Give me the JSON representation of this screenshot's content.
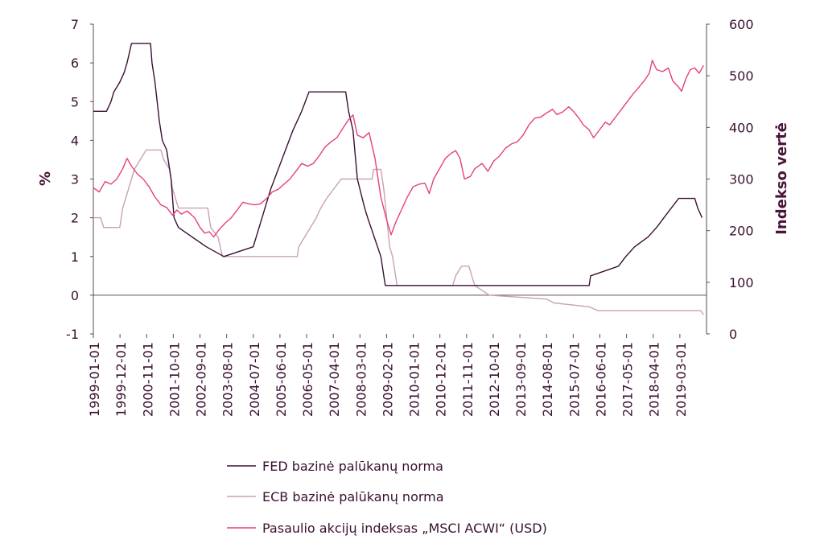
{
  "chart_data": {
    "type": "line",
    "ylabel_left": "%",
    "ylabel_right": "Indekso vertė",
    "ylim_left": [
      -1,
      7
    ],
    "ylim_right": [
      0,
      600
    ],
    "yticks_left": [
      "-1",
      "0",
      "1",
      "2",
      "3",
      "4",
      "5",
      "6",
      "7"
    ],
    "yticks_right": [
      "0",
      "100",
      "200",
      "300",
      "400",
      "500",
      "600"
    ],
    "x_range": [
      1999.0,
      2019.9
    ],
    "x_tick_labels": [
      "1999-01-01",
      "1999-12-01",
      "2000-11-01",
      "2001-10-01",
      "2002-09-01",
      "2003-08-01",
      "2004-07-01",
      "2005-06-01",
      "2006-05-01",
      "2007-04-01",
      "2008-03-01",
      "2009-02-01",
      "2010-01-01",
      "2010-12-01",
      "2011-11-01",
      "2012-10-01",
      "2013-09-01",
      "2014-08-01",
      "2015-07-01",
      "2016-06-01",
      "2017-05-01",
      "2018-04-01",
      "2019-03-01"
    ],
    "grid": false,
    "legend_position": "bottom",
    "colors": {
      "fed": "#3b0f33",
      "ecb": "#c7a3b2",
      "msci": "#e6407a",
      "axis": "#5a4a55"
    },
    "series": [
      {
        "name": "FED bazinė palūkanų norma",
        "axis": "left",
        "points": [
          [
            1999.0,
            4.75
          ],
          [
            1999.45,
            4.75
          ],
          [
            1999.6,
            5.0
          ],
          [
            1999.7,
            5.25
          ],
          [
            1999.9,
            5.5
          ],
          [
            2000.05,
            5.75
          ],
          [
            2000.15,
            6.0
          ],
          [
            2000.3,
            6.5
          ],
          [
            2000.95,
            6.5
          ],
          [
            2001.0,
            6.0
          ],
          [
            2001.1,
            5.5
          ],
          [
            2001.25,
            4.5
          ],
          [
            2001.35,
            4.0
          ],
          [
            2001.5,
            3.75
          ],
          [
            2001.65,
            3.0
          ],
          [
            2001.75,
            2.0
          ],
          [
            2001.9,
            1.75
          ],
          [
            2002.85,
            1.25
          ],
          [
            2003.45,
            1.0
          ],
          [
            2004.45,
            1.25
          ],
          [
            2004.65,
            1.75
          ],
          [
            2004.85,
            2.25
          ],
          [
            2005.05,
            2.75
          ],
          [
            2005.3,
            3.25
          ],
          [
            2005.55,
            3.75
          ],
          [
            2005.8,
            4.25
          ],
          [
            2006.1,
            4.75
          ],
          [
            2006.35,
            5.25
          ],
          [
            2007.6,
            5.25
          ],
          [
            2007.7,
            4.75
          ],
          [
            2007.85,
            4.25
          ],
          [
            2008.0,
            3.0
          ],
          [
            2008.25,
            2.25
          ],
          [
            2008.35,
            2.0
          ],
          [
            2008.8,
            1.0
          ],
          [
            2008.95,
            0.25
          ],
          [
            2015.9,
            0.25
          ],
          [
            2015.95,
            0.5
          ],
          [
            2016.9,
            0.75
          ],
          [
            2017.15,
            1.0
          ],
          [
            2017.45,
            1.25
          ],
          [
            2017.9,
            1.5
          ],
          [
            2018.2,
            1.75
          ],
          [
            2018.45,
            2.0
          ],
          [
            2018.7,
            2.25
          ],
          [
            2018.95,
            2.5
          ],
          [
            2019.5,
            2.5
          ],
          [
            2019.6,
            2.25
          ],
          [
            2019.75,
            2.0
          ]
        ]
      },
      {
        "name": "ECB bazinė palūkanų norma",
        "axis": "left",
        "points": [
          [
            1999.0,
            2.0
          ],
          [
            1999.25,
            2.0
          ],
          [
            1999.35,
            1.75
          ],
          [
            1999.9,
            1.75
          ],
          [
            2000.0,
            2.25
          ],
          [
            2000.2,
            2.75
          ],
          [
            2000.4,
            3.25
          ],
          [
            2000.6,
            3.5
          ],
          [
            2000.8,
            3.75
          ],
          [
            2001.3,
            3.75
          ],
          [
            2001.4,
            3.5
          ],
          [
            2001.6,
            3.25
          ],
          [
            2001.7,
            2.75
          ],
          [
            2001.9,
            2.25
          ],
          [
            2002.9,
            2.25
          ],
          [
            2003.0,
            1.75
          ],
          [
            2003.25,
            1.5
          ],
          [
            2003.4,
            1.0
          ],
          [
            2005.95,
            1.0
          ],
          [
            2006.0,
            1.25
          ],
          [
            2006.2,
            1.5
          ],
          [
            2006.4,
            1.75
          ],
          [
            2006.6,
            2.0
          ],
          [
            2006.75,
            2.25
          ],
          [
            2006.95,
            2.5
          ],
          [
            2007.2,
            2.75
          ],
          [
            2007.45,
            3.0
          ],
          [
            2008.5,
            3.0
          ],
          [
            2008.55,
            3.25
          ],
          [
            2008.8,
            3.25
          ],
          [
            2008.9,
            2.75
          ],
          [
            2009.0,
            2.0
          ],
          [
            2009.1,
            1.25
          ],
          [
            2009.2,
            1.0
          ],
          [
            2009.35,
            0.25
          ],
          [
            2011.25,
            0.25
          ],
          [
            2011.35,
            0.5
          ],
          [
            2011.55,
            0.75
          ],
          [
            2011.8,
            0.75
          ],
          [
            2011.9,
            0.5
          ],
          [
            2012.0,
            0.25
          ],
          [
            2012.5,
            0.0
          ],
          [
            2014.45,
            -0.1
          ],
          [
            2014.7,
            -0.2
          ],
          [
            2015.9,
            -0.3
          ],
          [
            2016.2,
            -0.4
          ],
          [
            2019.7,
            -0.4
          ],
          [
            2019.8,
            -0.5
          ]
        ]
      },
      {
        "name": "Pasaulio akcijų indeksas „MSCI ACWI“ (USD)",
        "axis": "right",
        "points": [
          [
            1999.0,
            283
          ],
          [
            1999.2,
            275
          ],
          [
            1999.4,
            295
          ],
          [
            1999.6,
            290
          ],
          [
            1999.8,
            300
          ],
          [
            2000.0,
            320
          ],
          [
            2000.15,
            340
          ],
          [
            2000.3,
            325
          ],
          [
            2000.5,
            310
          ],
          [
            2000.7,
            300
          ],
          [
            2000.9,
            285
          ],
          [
            2001.1,
            265
          ],
          [
            2001.3,
            250
          ],
          [
            2001.5,
            245
          ],
          [
            2001.7,
            230
          ],
          [
            2001.85,
            240
          ],
          [
            2002.0,
            232
          ],
          [
            2002.2,
            238
          ],
          [
            2002.45,
            225
          ],
          [
            2002.65,
            205
          ],
          [
            2002.8,
            195
          ],
          [
            2002.95,
            198
          ],
          [
            2003.1,
            188
          ],
          [
            2003.3,
            203
          ],
          [
            2003.5,
            215
          ],
          [
            2003.7,
            225
          ],
          [
            2003.9,
            240
          ],
          [
            2004.1,
            255
          ],
          [
            2004.3,
            252
          ],
          [
            2004.5,
            250
          ],
          [
            2004.7,
            252
          ],
          [
            2004.9,
            262
          ],
          [
            2005.1,
            275
          ],
          [
            2005.3,
            280
          ],
          [
            2005.5,
            290
          ],
          [
            2005.7,
            300
          ],
          [
            2005.9,
            315
          ],
          [
            2006.1,
            330
          ],
          [
            2006.3,
            325
          ],
          [
            2006.5,
            330
          ],
          [
            2006.7,
            345
          ],
          [
            2006.9,
            362
          ],
          [
            2007.1,
            372
          ],
          [
            2007.3,
            380
          ],
          [
            2007.5,
            398
          ],
          [
            2007.7,
            415
          ],
          [
            2007.85,
            424
          ],
          [
            2008.0,
            385
          ],
          [
            2008.2,
            380
          ],
          [
            2008.4,
            390
          ],
          [
            2008.6,
            340
          ],
          [
            2008.8,
            265
          ],
          [
            2009.0,
            220
          ],
          [
            2009.15,
            192
          ],
          [
            2009.3,
            215
          ],
          [
            2009.5,
            240
          ],
          [
            2009.7,
            265
          ],
          [
            2009.9,
            285
          ],
          [
            2010.1,
            290
          ],
          [
            2010.3,
            292
          ],
          [
            2010.45,
            272
          ],
          [
            2010.6,
            300
          ],
          [
            2010.8,
            320
          ],
          [
            2011.0,
            340
          ],
          [
            2011.2,
            350
          ],
          [
            2011.35,
            355
          ],
          [
            2011.5,
            340
          ],
          [
            2011.65,
            300
          ],
          [
            2011.85,
            305
          ],
          [
            2012.0,
            320
          ],
          [
            2012.25,
            330
          ],
          [
            2012.45,
            315
          ],
          [
            2012.65,
            335
          ],
          [
            2012.85,
            345
          ],
          [
            2013.05,
            360
          ],
          [
            2013.25,
            368
          ],
          [
            2013.45,
            372
          ],
          [
            2013.65,
            385
          ],
          [
            2013.85,
            405
          ],
          [
            2014.05,
            418
          ],
          [
            2014.25,
            420
          ],
          [
            2014.45,
            428
          ],
          [
            2014.65,
            435
          ],
          [
            2014.8,
            425
          ],
          [
            2015.0,
            430
          ],
          [
            2015.2,
            440
          ],
          [
            2015.35,
            432
          ],
          [
            2015.55,
            418
          ],
          [
            2015.7,
            405
          ],
          [
            2015.9,
            395
          ],
          [
            2016.05,
            380
          ],
          [
            2016.25,
            395
          ],
          [
            2016.45,
            410
          ],
          [
            2016.6,
            405
          ],
          [
            2016.8,
            420
          ],
          [
            2017.0,
            435
          ],
          [
            2017.2,
            450
          ],
          [
            2017.4,
            465
          ],
          [
            2017.6,
            478
          ],
          [
            2017.8,
            492
          ],
          [
            2017.95,
            505
          ],
          [
            2018.05,
            530
          ],
          [
            2018.2,
            512
          ],
          [
            2018.4,
            508
          ],
          [
            2018.6,
            515
          ],
          [
            2018.75,
            490
          ],
          [
            2018.95,
            478
          ],
          [
            2019.05,
            470
          ],
          [
            2019.2,
            495
          ],
          [
            2019.35,
            512
          ],
          [
            2019.5,
            515
          ],
          [
            2019.65,
            505
          ],
          [
            2019.8,
            520
          ]
        ]
      }
    ]
  }
}
